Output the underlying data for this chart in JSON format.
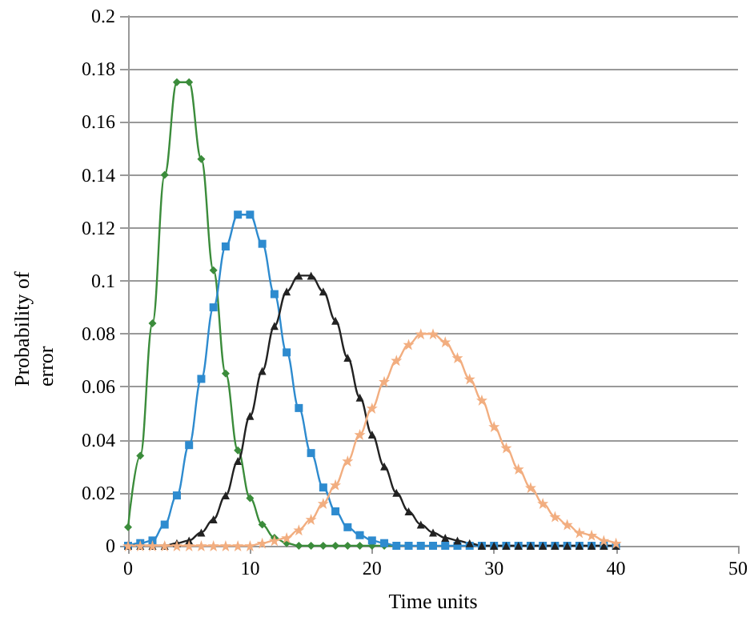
{
  "chart_data": {
    "type": "line",
    "xlabel": "Time units",
    "ylabel": "Probability of error",
    "x": [
      0,
      1,
      2,
      3,
      4,
      5,
      6,
      7,
      8,
      9,
      10,
      11,
      12,
      13,
      14,
      15,
      16,
      17,
      18,
      19,
      20,
      21,
      22,
      23,
      24,
      25,
      26,
      27,
      28,
      29,
      30,
      31,
      32,
      33,
      34,
      35,
      36,
      37,
      38,
      39,
      40
    ],
    "xlim": [
      0,
      50
    ],
    "xticks": [
      0,
      10,
      20,
      30,
      40,
      50
    ],
    "ylim": [
      0,
      0.2
    ],
    "yticks": [
      0,
      0.02,
      0.04,
      0.06,
      0.08,
      0.1,
      0.12,
      0.14,
      0.16,
      0.18,
      0.2
    ],
    "grid": "y",
    "line_style": "solid",
    "series": [
      {
        "color": "#3b8c3b",
        "marker": "diamond",
        "values": [
          0.007,
          0.034,
          0.084,
          0.14,
          0.175,
          0.175,
          0.146,
          0.104,
          0.065,
          0.036,
          0.018,
          0.008,
          0.003,
          0.001,
          0,
          0,
          0,
          0,
          0,
          0,
          0,
          0,
          0,
          0,
          null,
          null,
          null,
          null,
          null,
          null,
          null,
          null,
          null,
          null,
          null,
          null,
          null,
          null,
          null,
          null,
          null
        ]
      },
      {
        "color": "#2e8bcf",
        "marker": "square",
        "values": [
          0,
          0.001,
          0.002,
          0.008,
          0.019,
          0.038,
          0.063,
          0.09,
          0.113,
          0.125,
          0.125,
          0.114,
          0.095,
          0.073,
          0.052,
          0.035,
          0.022,
          0.013,
          0.007,
          0.004,
          0.002,
          0.001,
          0,
          0,
          0,
          0,
          0,
          0,
          0,
          0,
          0,
          0,
          0,
          0,
          0,
          0,
          0,
          0,
          0,
          0,
          0
        ]
      },
      {
        "color": "#222222",
        "marker": "triangle",
        "values": [
          0,
          0,
          0,
          0,
          0.001,
          0.002,
          0.005,
          0.01,
          0.019,
          0.032,
          0.049,
          0.066,
          0.083,
          0.096,
          0.102,
          0.102,
          0.096,
          0.085,
          0.071,
          0.056,
          0.042,
          0.03,
          0.02,
          0.013,
          0.008,
          0.005,
          0.003,
          0.002,
          0.001,
          0,
          0,
          0,
          0,
          0,
          0,
          0,
          0,
          0,
          0,
          0,
          0
        ]
      },
      {
        "color": "#f2ae80",
        "marker": "star",
        "values": [
          0,
          0,
          0,
          0,
          0,
          0,
          0,
          0,
          0,
          0,
          0,
          0.001,
          0.002,
          0.003,
          0.006,
          0.01,
          0.016,
          0.023,
          0.032,
          0.042,
          0.052,
          0.062,
          0.07,
          0.076,
          0.08,
          0.08,
          0.077,
          0.071,
          0.063,
          0.055,
          0.045,
          0.037,
          0.029,
          0.022,
          0.016,
          0.011,
          0.008,
          0.005,
          0.004,
          0.002,
          0.001
        ]
      }
    ]
  }
}
